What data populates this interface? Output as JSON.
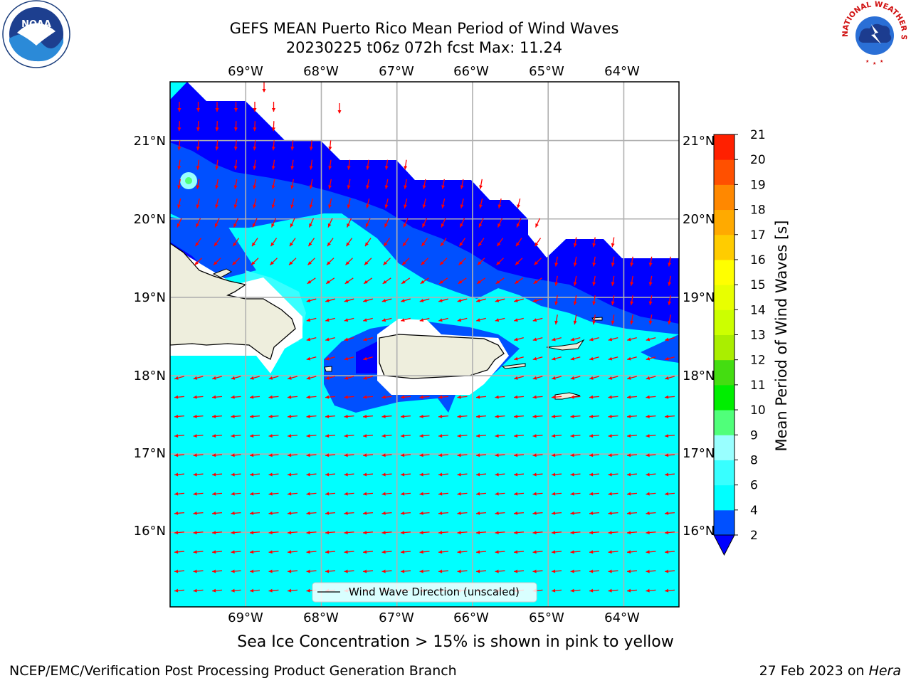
{
  "header": {
    "title_line1": "GEFS MEAN Puerto Rico Mean Period of Wind Waves",
    "title_line2": "20230225 t06z 072h fcst   Max: 11.24"
  },
  "logos": {
    "noaa": "NOAA",
    "nws": "NATIONAL WEATHER SERVICE"
  },
  "map": {
    "lon_labels": [
      "69°W",
      "68°W",
      "67°W",
      "66°W",
      "65°W",
      "64°W"
    ],
    "lat_labels": [
      "21°N",
      "20°N",
      "19°N",
      "18°N",
      "17°N",
      "16°N"
    ],
    "lon_range": [
      -70.0,
      -63.27
    ],
    "lat_range": [
      15.05,
      21.75
    ],
    "legend_label": "Wind Wave Direction (unscaled)",
    "colors": {
      "land": "#eeeedd",
      "arrow": "#ff0000",
      "grid": "#b0b0b0"
    }
  },
  "colorbar": {
    "label": "Mean Period of Wind Waves [s]",
    "ticks": [
      "2",
      "4",
      "6",
      "8",
      "9",
      "10",
      "11",
      "12",
      "13",
      "14",
      "15",
      "16",
      "17",
      "18",
      "19",
      "20",
      "21"
    ],
    "colors": [
      "#0050ff",
      "#00ffff",
      "#38ffff",
      "#99ffff",
      "#50ff7a",
      "#00ee00",
      "#44dd11",
      "#aaee00",
      "#ccff00",
      "#e8ff00",
      "#ffff00",
      "#ffcc00",
      "#ffaa00",
      "#ff8800",
      "#ff5000",
      "#ff2000"
    ],
    "under_color": "#0000ff"
  },
  "footer": {
    "note": "Sea Ice Concentration > 15% is shown in pink to yellow",
    "branch": "NCEP/EMC/Verification Post Processing Product Generation Branch",
    "date": "27 Feb 2023 on ",
    "system": "Hera"
  }
}
